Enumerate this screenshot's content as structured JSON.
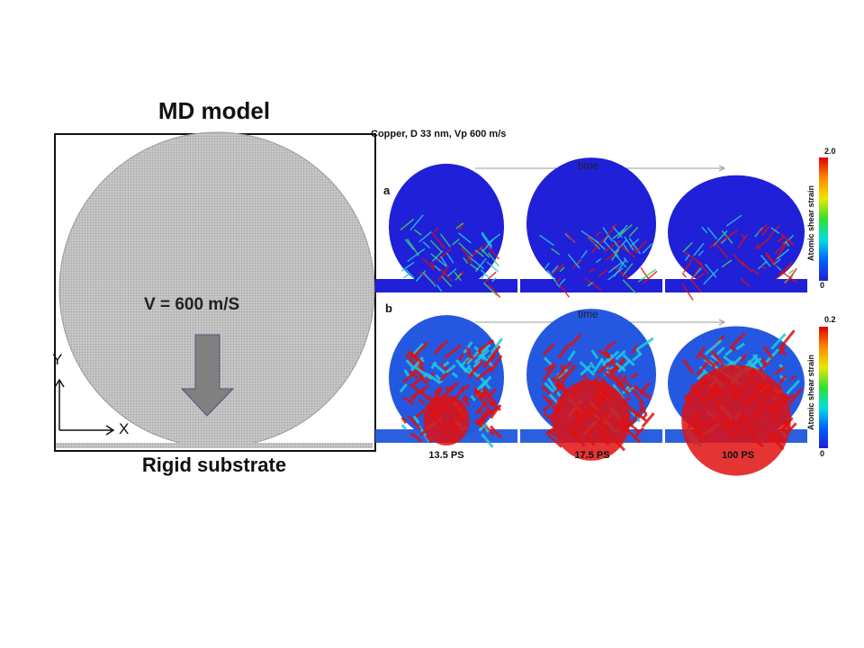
{
  "model": {
    "title": "MD model",
    "velocity_label": "V = 600 m/S",
    "axis_y": "Y",
    "axis_x": "X",
    "substrate_label": "Rigid substrate"
  },
  "figure": {
    "title": "Copper, D 33 nm, Vp 600 m/s",
    "rows": [
      {
        "panel": "a",
        "time_label": "time",
        "colorbar": {
          "max": "2.0",
          "min": "0",
          "title": "Atomic shear strain"
        }
      },
      {
        "panel": "b",
        "time_label": "time",
        "colorbar": {
          "max": "0.2",
          "min": "0",
          "title": "Atomic shear strain"
        }
      }
    ],
    "timestamps": [
      "13.5 PS",
      "17.5 PS",
      "100 PS"
    ]
  },
  "colors": {
    "particle": "#c4c4c4",
    "arrow": "#808080",
    "low_strain": "#2020d8",
    "high_strain": "#e00000"
  }
}
